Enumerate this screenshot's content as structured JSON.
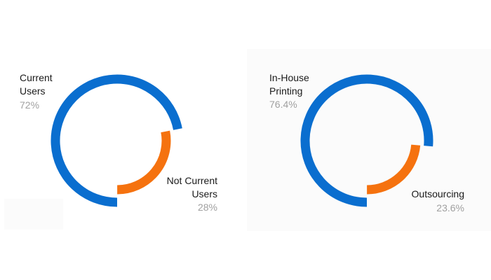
{
  "chart_data": [
    {
      "type": "pie",
      "style": "radial-ring",
      "slices": [
        {
          "label": "Current Users",
          "label_lines": [
            "Current",
            "Users"
          ],
          "value": 72,
          "display": "72%",
          "color": "#0a6ecf"
        },
        {
          "label": "Not Current Users",
          "label_lines": [
            "Not Current",
            "Users"
          ],
          "value": 28,
          "display": "28%",
          "color": "#f5720f"
        }
      ]
    },
    {
      "type": "pie",
      "style": "radial-ring",
      "slices": [
        {
          "label": "In-House Printing",
          "label_lines": [
            "In-House",
            "Printing"
          ],
          "value": 76.4,
          "display": "76.4%",
          "color": "#0a6ecf"
        },
        {
          "label": "Outsourcing",
          "label_lines": [
            "Outsourcing"
          ],
          "value": 23.6,
          "display": "23.6%",
          "color": "#f5720f"
        }
      ]
    }
  ]
}
